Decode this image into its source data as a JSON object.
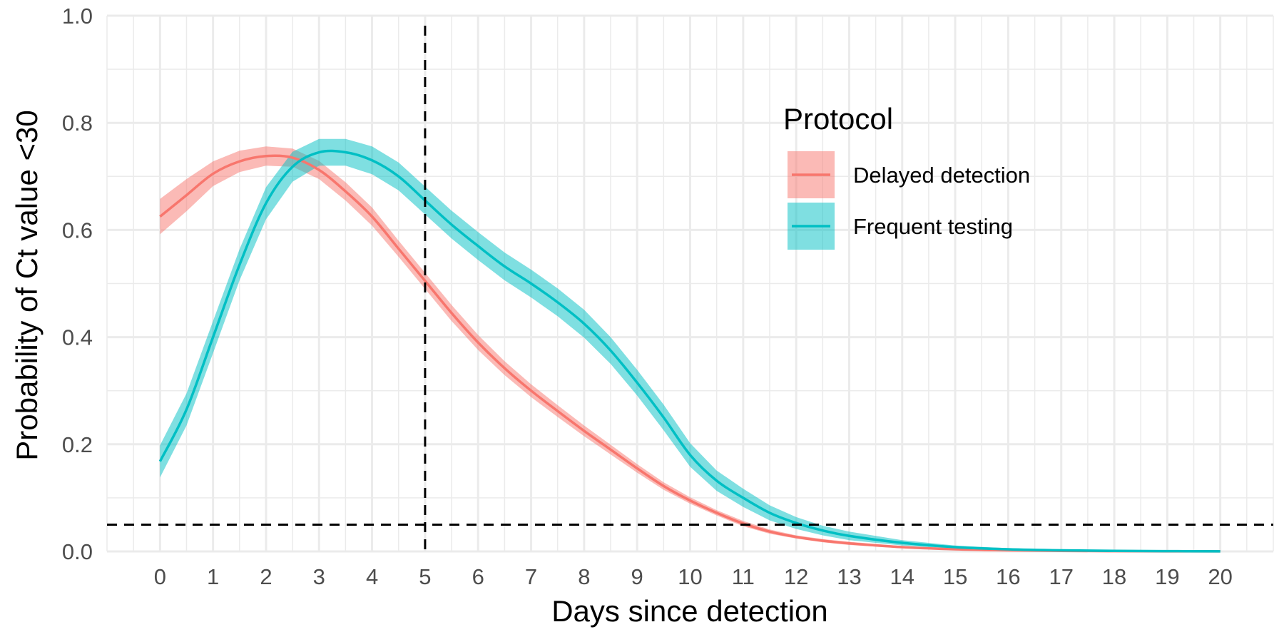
{
  "chart_data": {
    "type": "line",
    "xlabel": "Days since detection",
    "ylabel": "Probability of Ct value <30",
    "xlim": [
      -1,
      21
    ],
    "ylim": [
      0,
      1
    ],
    "x_ticks": [
      0,
      1,
      2,
      3,
      4,
      5,
      6,
      7,
      8,
      9,
      10,
      11,
      12,
      13,
      14,
      15,
      16,
      17,
      18,
      19,
      20
    ],
    "y_ticks": [
      0.0,
      0.2,
      0.4,
      0.6,
      0.8,
      1.0
    ],
    "y_tick_labels": [
      "0.0",
      "0.2",
      "0.4",
      "0.6",
      "0.8",
      "1.0"
    ],
    "grid": true,
    "reference_lines": [
      {
        "orientation": "vertical",
        "value": 5,
        "style": "dashed"
      },
      {
        "orientation": "horizontal",
        "value": 0.05,
        "style": "dashed"
      }
    ],
    "legend": {
      "title": "Protocol",
      "position": "top-right"
    },
    "series": [
      {
        "name": "Delayed detection",
        "color": "#F8766D",
        "x": [
          0,
          0.5,
          1,
          1.5,
          2,
          2.5,
          3,
          3.5,
          4,
          4.5,
          5,
          5.5,
          6,
          6.5,
          7,
          7.5,
          8,
          8.5,
          9,
          9.5,
          10,
          10.5,
          11,
          11.5,
          12,
          12.5,
          13,
          14,
          15,
          16,
          17,
          18,
          19,
          20
        ],
        "y": [
          0.625,
          0.665,
          0.705,
          0.728,
          0.738,
          0.735,
          0.712,
          0.672,
          0.625,
          0.565,
          0.505,
          0.445,
          0.39,
          0.342,
          0.3,
          0.262,
          0.225,
          0.19,
          0.155,
          0.122,
          0.095,
          0.072,
          0.052,
          0.037,
          0.027,
          0.02,
          0.015,
          0.008,
          0.004,
          0.002,
          0.001,
          0.0005,
          0.0002,
          0.0001
        ],
        "lower": [
          0.592,
          0.635,
          0.682,
          0.708,
          0.72,
          0.718,
          0.695,
          0.655,
          0.608,
          0.55,
          0.49,
          0.43,
          0.376,
          0.329,
          0.288,
          0.251,
          0.215,
          0.181,
          0.147,
          0.115,
          0.089,
          0.067,
          0.047,
          0.033,
          0.024,
          0.017,
          0.012,
          0.006,
          0.003,
          0.0015,
          0.0007,
          0.0003,
          0.0001,
          5e-05
        ],
        "upper": [
          0.658,
          0.695,
          0.728,
          0.748,
          0.756,
          0.752,
          0.729,
          0.689,
          0.642,
          0.58,
          0.52,
          0.46,
          0.404,
          0.355,
          0.312,
          0.273,
          0.235,
          0.199,
          0.163,
          0.129,
          0.101,
          0.077,
          0.057,
          0.041,
          0.03,
          0.023,
          0.018,
          0.01,
          0.005,
          0.0025,
          0.0013,
          0.0007,
          0.0003,
          0.00015
        ]
      },
      {
        "name": "Frequent testing",
        "color": "#00BFC4",
        "x": [
          0,
          0.5,
          1,
          1.5,
          2,
          2.5,
          3,
          3.5,
          4,
          4.5,
          5,
          5.5,
          6,
          6.5,
          7,
          7.5,
          8,
          8.5,
          9,
          9.5,
          10,
          10.5,
          11,
          11.5,
          12,
          12.5,
          13,
          14,
          15,
          16,
          17,
          18,
          19,
          20
        ],
        "y": [
          0.168,
          0.265,
          0.4,
          0.535,
          0.65,
          0.718,
          0.745,
          0.745,
          0.73,
          0.7,
          0.655,
          0.61,
          0.57,
          0.532,
          0.5,
          0.465,
          0.425,
          0.375,
          0.315,
          0.25,
          0.18,
          0.132,
          0.1,
          0.072,
          0.053,
          0.039,
          0.029,
          0.016,
          0.008,
          0.004,
          0.002,
          0.001,
          0.0005,
          0.0002
        ],
        "lower": [
          0.138,
          0.235,
          0.37,
          0.506,
          0.62,
          0.69,
          0.72,
          0.72,
          0.704,
          0.674,
          0.629,
          0.584,
          0.544,
          0.506,
          0.474,
          0.439,
          0.399,
          0.35,
          0.291,
          0.226,
          0.158,
          0.113,
          0.083,
          0.058,
          0.042,
          0.03,
          0.021,
          0.011,
          0.005,
          0.002,
          0.001,
          0.0005,
          0.0002,
          0.0001
        ],
        "upper": [
          0.198,
          0.295,
          0.43,
          0.564,
          0.68,
          0.746,
          0.77,
          0.77,
          0.756,
          0.726,
          0.681,
          0.636,
          0.596,
          0.558,
          0.526,
          0.491,
          0.451,
          0.4,
          0.339,
          0.274,
          0.202,
          0.151,
          0.117,
          0.086,
          0.064,
          0.048,
          0.037,
          0.021,
          0.011,
          0.006,
          0.003,
          0.0015,
          0.0008,
          0.0003
        ]
      }
    ]
  }
}
